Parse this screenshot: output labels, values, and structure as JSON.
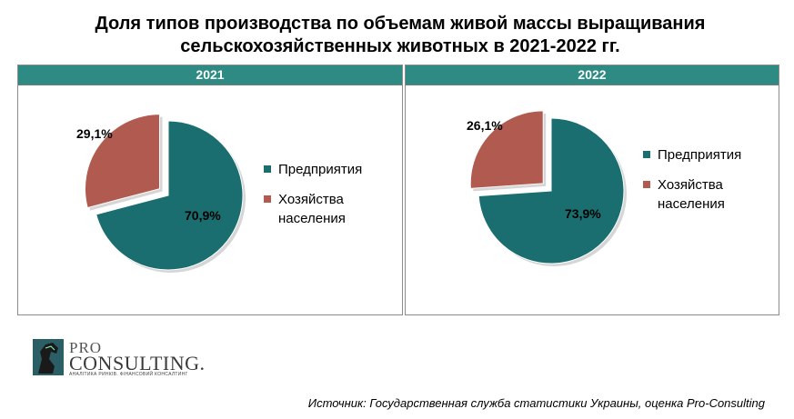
{
  "title": "Доля типов производства по объемам живой массы выращивания сельскохозяйственных животных в 2021-2022 гг.",
  "chart_data": [
    {
      "type": "pie",
      "title": "2021",
      "labels": [
        "Предприятия",
        "Хозяйства населения"
      ],
      "values": [
        70.9,
        29.1
      ],
      "value_labels": [
        "70,9%",
        "29,1%"
      ],
      "colors": [
        "#1a6e70",
        "#b05a50"
      ],
      "exploded": "Хозяйства населения",
      "legend_position": "right"
    },
    {
      "type": "pie",
      "title": "2022",
      "labels": [
        "Предприятия",
        "Хозяйства населения"
      ],
      "values": [
        73.9,
        26.1
      ],
      "value_labels": [
        "73,9%",
        "26,1%"
      ],
      "colors": [
        "#1a6e70",
        "#b05a50"
      ],
      "exploded": "Хозяйства населения",
      "legend_position": "right"
    }
  ],
  "legend": {
    "item1": "Предприятия",
    "item2_line1": "Хозяйства",
    "item2_line2": "населения"
  },
  "logo": {
    "pro": "PRO",
    "consulting": "CONSULTING.",
    "tagline": "АНАЛІТИКА РИНКІВ. ФІНАНСОВИЙ КОНСАЛТИНГ"
  },
  "source": "Источник: Государственная служба статистики Украины, оценка Pro-Consulting"
}
